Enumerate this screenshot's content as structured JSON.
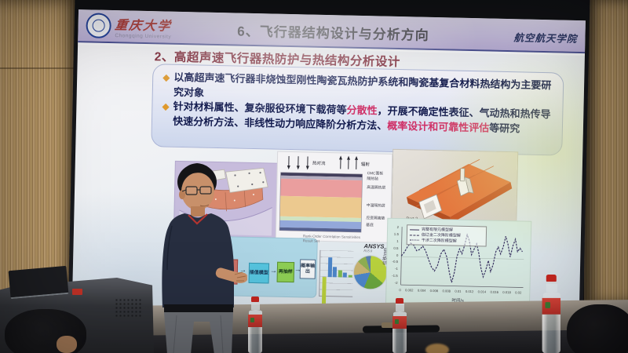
{
  "slide": {
    "header": {
      "logo_cn": "重庆大学",
      "logo_en": "Chongqing University",
      "title": "6、飞行器结构设计与分析方向",
      "affiliation": "航空航天学院"
    },
    "section_title": "2、高超声速飞行器热防护与热结构分析设计",
    "bullets": {
      "b1": "以高超声速飞行器非烧蚀型刚性陶瓷瓦热防护系统和陶瓷基复合材料热结构为主要研究对象",
      "b2_pre": "针对材料属性、复杂服役环境下载荷等",
      "b2_hl1": "分散性",
      "b2_mid": "，开展不确定性表征、气动热和热传导快速分析方法、非线性动力响应降阶分析方法、",
      "b2_hl2": "概率设计和可靠性评估",
      "b2_post": "等研究"
    },
    "tps_figure": {
      "arrow_down_label": "热对流",
      "arrow_up_label": "辐射",
      "layers": [
        "CMC面板",
        "隔热毡",
        "高温隔热层",
        "中温隔热层",
        "应变隔离垫",
        "基底"
      ]
    },
    "part_figure": {
      "caption": "Part 2"
    },
    "flowchart": {
      "boxes": [
        "插值模型",
        "再抽样",
        "概率输出"
      ]
    },
    "ansys_chart": {
      "title": "Rank-Order Correlation Sensitivities",
      "subtitle": "Result Set",
      "brand": "ANSYS",
      "brand_sub": "R15.0",
      "bars": [
        {
          "v": -1.5,
          "c": "#b9cf3c"
        },
        {
          "v": 0.95,
          "c": "#4d86c9"
        },
        {
          "v": 0.5,
          "c": "#4d86c9"
        },
        {
          "v": 0.35,
          "c": "#7fb94e"
        },
        {
          "v": 0.22,
          "c": "#4d86c9"
        },
        {
          "v": 0.12,
          "c": "#7fb94e"
        }
      ],
      "pie_slices": [
        {
          "c": "#b9d23d",
          "f": 0.36
        },
        {
          "c": "#6aa53f",
          "f": 0.2
        },
        {
          "c": "#4d86c9",
          "f": 0.16
        },
        {
          "c": "#c8b372",
          "f": 0.14
        },
        {
          "c": "#8faf52",
          "f": 0.09
        },
        {
          "c": "#5a7fae",
          "f": 0.05
        }
      ]
    },
    "lineplot": {
      "legend": [
        "完整有限元模型解",
        "伽辽金二次降阶模型解",
        "干涉二次降阶模型解"
      ],
      "xlabel": "时间/s",
      "ylabel": "位移/mm",
      "xticks": [
        "0",
        "0.002",
        "0.004",
        "0.006",
        "0.008",
        "0.01",
        "0.012",
        "0.014",
        "0.016",
        "0.018",
        "0.02"
      ],
      "yticks": [
        "2",
        "1.5",
        "1",
        "0.5",
        "0",
        "-0.5",
        "-1",
        "-1.5",
        "-2"
      ],
      "wave": [
        [
          0,
          0.05
        ],
        [
          0.5,
          0.35
        ],
        [
          1,
          0.75
        ],
        [
          1.5,
          1.0
        ],
        [
          2,
          0.85
        ],
        [
          2.5,
          0.45
        ],
        [
          3,
          0.55
        ],
        [
          3.5,
          0.8
        ],
        [
          4,
          0.45
        ],
        [
          4.5,
          -0.15
        ],
        [
          5,
          -0.7
        ],
        [
          5.5,
          -1.0
        ],
        [
          6,
          -0.6
        ],
        [
          6.5,
          0.25
        ],
        [
          7,
          0.6
        ],
        [
          7.5,
          0.05
        ],
        [
          8,
          -1.1
        ],
        [
          8.4,
          -1.8
        ],
        [
          8.8,
          -1.1
        ],
        [
          9.2,
          0.1
        ],
        [
          9.6,
          0.65
        ],
        [
          10,
          0.3
        ],
        [
          10.4,
          0.9
        ],
        [
          10.8,
          1.7
        ],
        [
          11.2,
          1.25
        ],
        [
          11.6,
          0.25
        ],
        [
          12,
          0.65
        ],
        [
          12.4,
          1.05
        ],
        [
          12.8,
          0.35
        ],
        [
          13.2,
          -0.7
        ],
        [
          13.6,
          -1.35
        ],
        [
          14,
          -0.85
        ],
        [
          14.4,
          -0.15
        ],
        [
          14.8,
          -0.95
        ],
        [
          15.2,
          -0.45
        ],
        [
          15.6,
          0.5
        ],
        [
          16,
          0.85
        ],
        [
          16.4,
          0.35
        ],
        [
          16.8,
          0.85
        ],
        [
          17.2,
          1.65
        ],
        [
          17.6,
          1.05
        ],
        [
          18,
          0.15
        ],
        [
          18.4,
          0.95
        ],
        [
          18.8,
          1.45
        ],
        [
          19.2,
          0.55
        ],
        [
          19.6,
          0.8
        ],
        [
          20,
          0.55
        ]
      ]
    }
  },
  "tps_label_tops": [
    23,
    30,
    41,
    64,
    80,
    89
  ]
}
